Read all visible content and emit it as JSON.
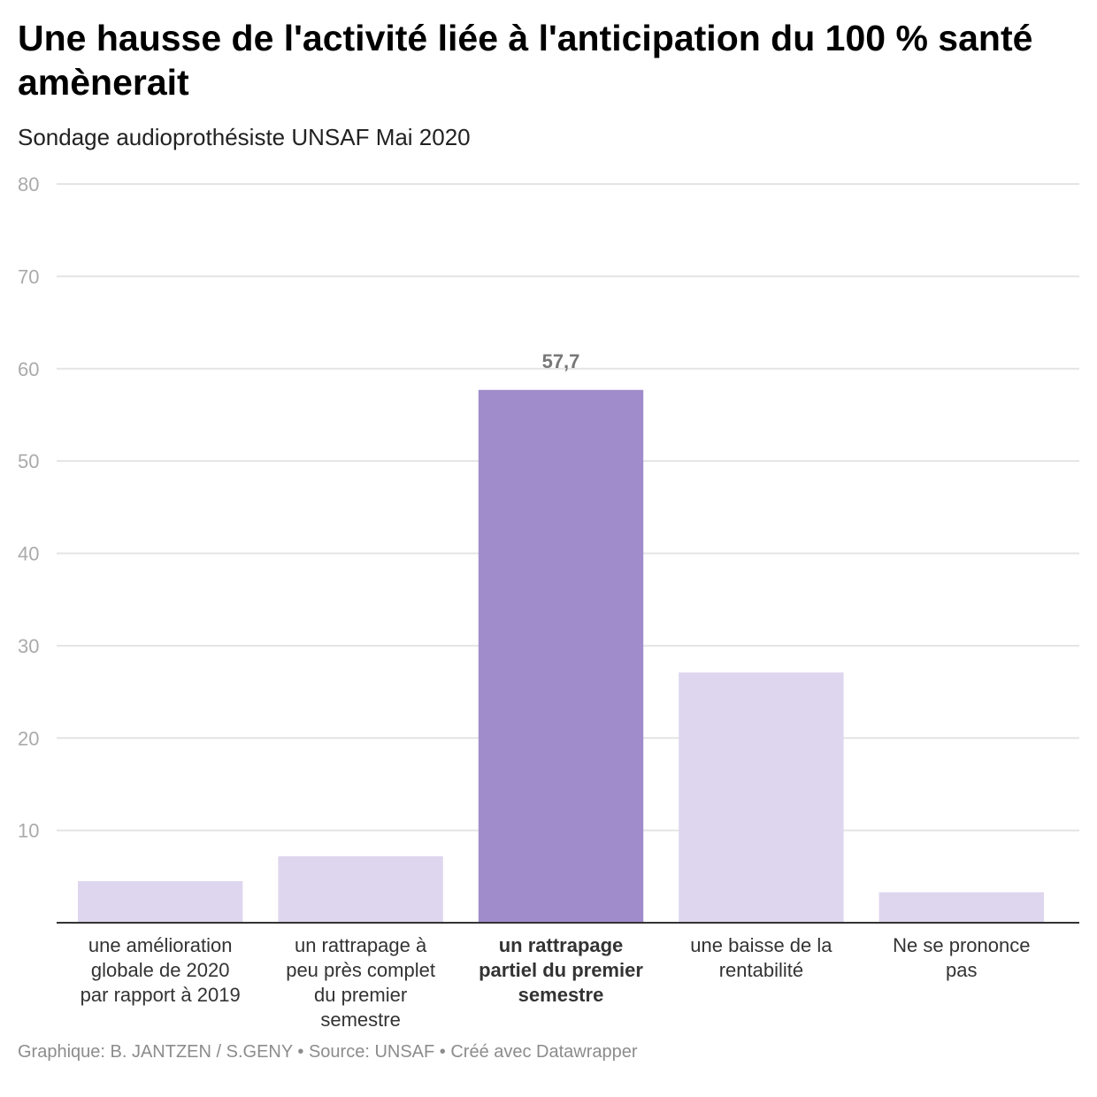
{
  "title": "Une hausse de l'activité liée à l'anticipation du 100 % santé amènerait",
  "subtitle": "Sondage audioprothésiste UNSAF Mai 2020",
  "footer": "Graphique: B. JANTZEN / S.GENY • Source: UNSAF • Créé avec Datawrapper",
  "colors": {
    "highlight": "#a08ccb",
    "bar": "#ded6ee",
    "grid": "#e4e4e4",
    "axis": "#333333"
  },
  "chart_data": {
    "type": "bar",
    "categories": [
      "une amélioration globale de 2020 par rapport à 2019",
      "un rattrapage à peu près complet du premier semestre",
      "un rattrapage partiel du premier semestre",
      "une baisse de la rentabilité",
      "Ne se prononce pas"
    ],
    "category_lines": [
      [
        "une amélioration",
        "globale de 2020",
        "par rapport à 2019"
      ],
      [
        "un rattrapage à",
        "peu près complet",
        "du premier",
        "semestre"
      ],
      [
        "un rattrapage",
        "partiel du premier",
        "semestre"
      ],
      [
        "une baisse de la",
        "rentabilité"
      ],
      [
        "Ne se prononce",
        "pas"
      ]
    ],
    "values": [
      4.5,
      7.2,
      57.7,
      27.1,
      3.3
    ],
    "highlight_index": 2,
    "data_labels": [
      "",
      "",
      "57,7",
      "",
      ""
    ],
    "yticks": [
      10,
      20,
      30,
      40,
      50,
      60,
      70,
      80
    ],
    "ylim": [
      0,
      80
    ],
    "grid": true,
    "xlabel": "",
    "ylabel": ""
  }
}
